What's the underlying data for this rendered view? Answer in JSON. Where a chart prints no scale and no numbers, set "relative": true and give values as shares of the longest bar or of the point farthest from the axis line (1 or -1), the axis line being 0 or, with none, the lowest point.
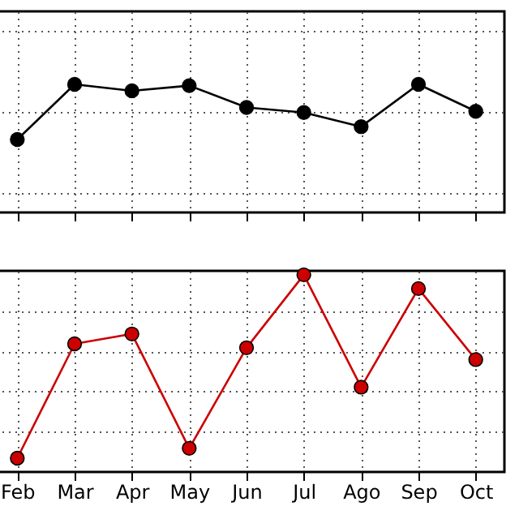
{
  "chart_data": [
    {
      "type": "line",
      "categories": [
        null,
        null,
        null,
        null,
        null,
        null,
        null,
        null,
        null
      ],
      "values": [
        0.57,
        1,
        0.95,
        0.99,
        0.82,
        0.78,
        0.67,
        1,
        0.79
      ],
      "color": "#000000",
      "relative": true,
      "marker": "circle",
      "grid": true,
      "tick_labels": false
    },
    {
      "type": "line",
      "categories": [
        "Feb",
        "Mar",
        "Apr",
        "May",
        "Jun",
        "Jul",
        "Ago",
        "Sep",
        "Oct"
      ],
      "values": [
        0.07,
        0.65,
        0.7,
        0.12,
        0.63,
        1,
        0.43,
        0.93,
        0.57
      ],
      "color": "#cc0000",
      "relative": true,
      "marker": "circle",
      "grid": true,
      "tick_labels": "x"
    }
  ]
}
